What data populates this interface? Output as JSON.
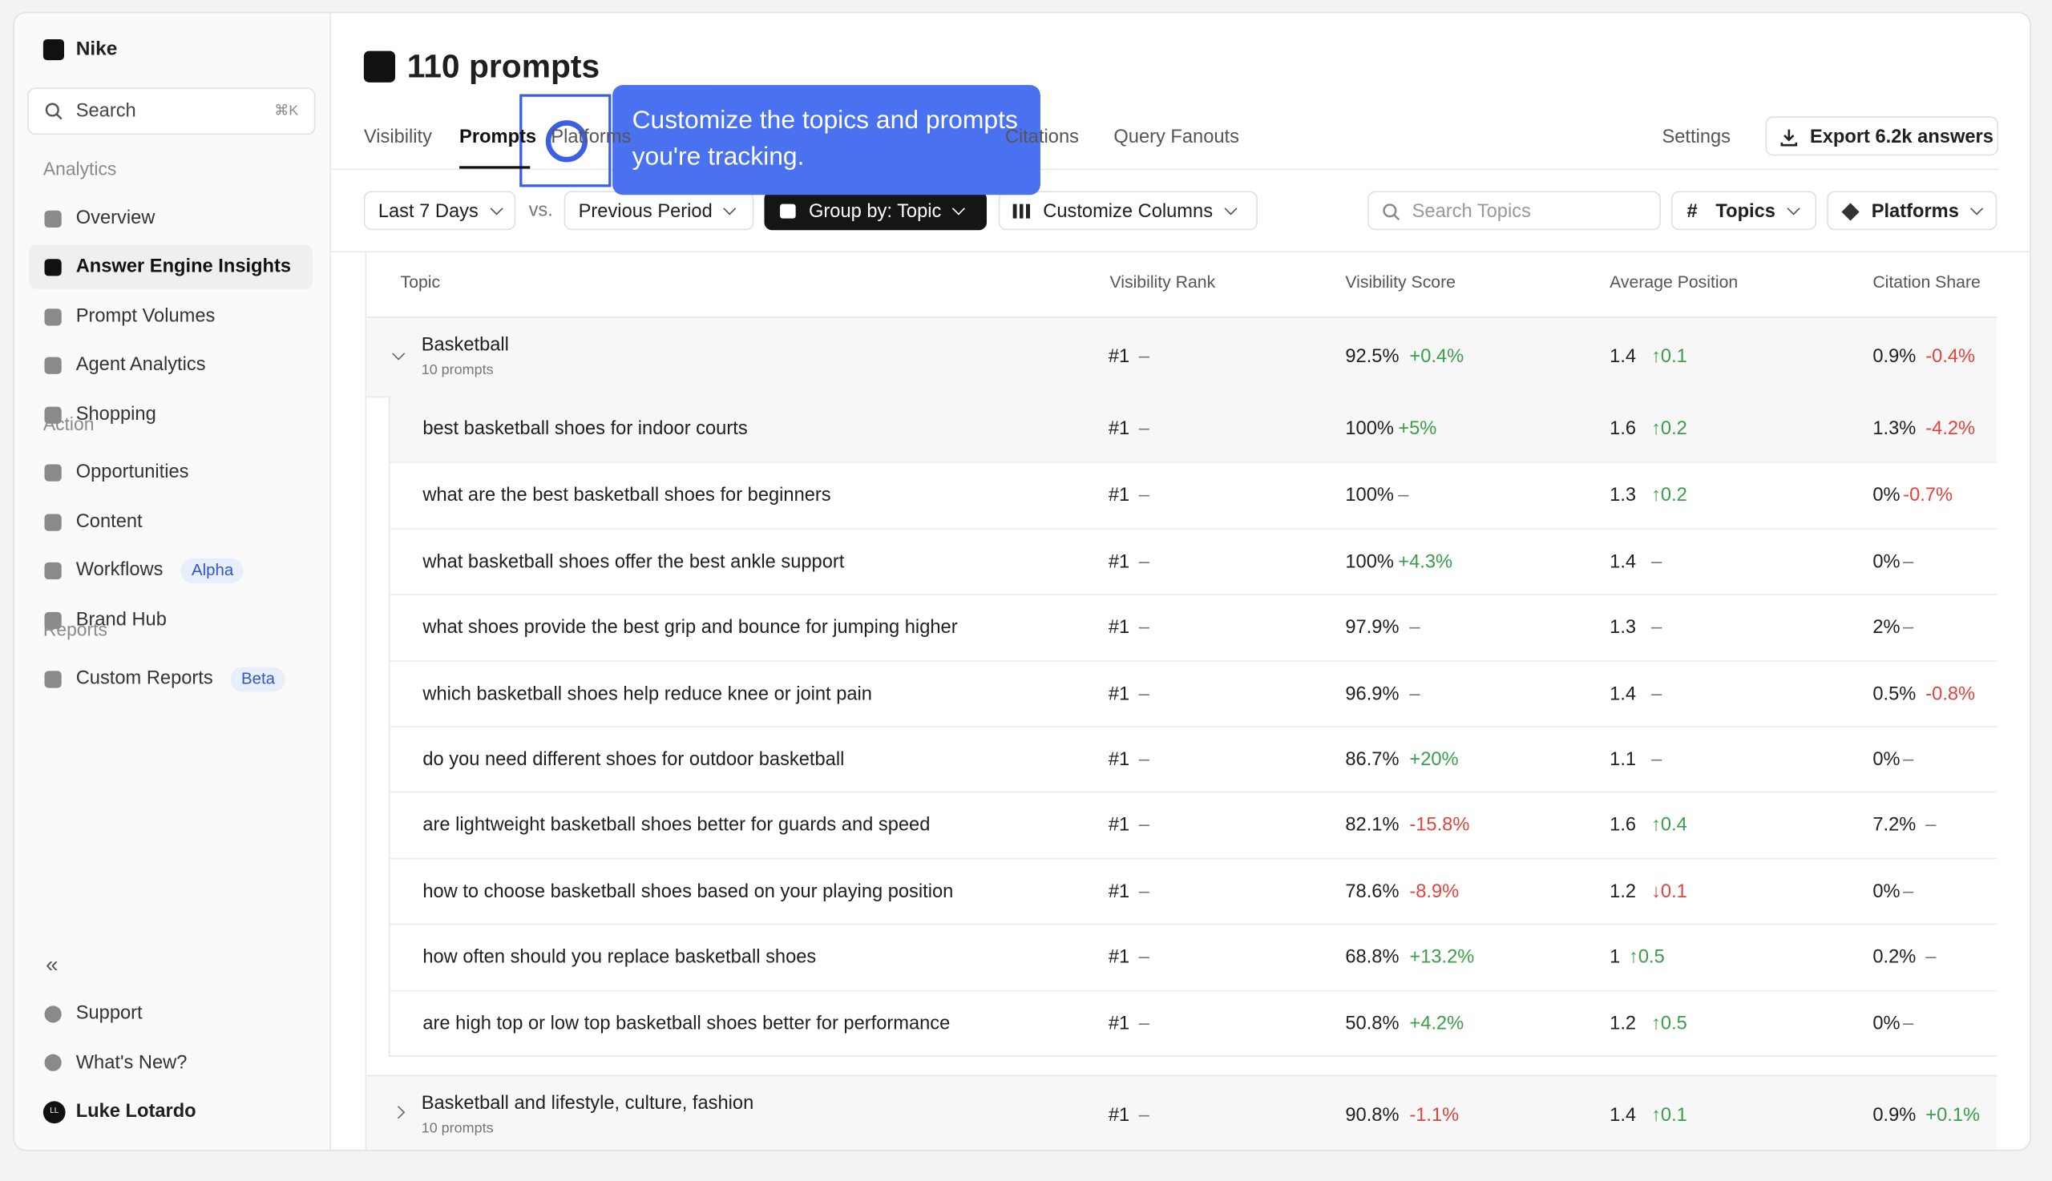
{
  "sidebar": {
    "workspace": "Nike",
    "search": "Search",
    "shortcut": "⌘K",
    "sections": [
      {
        "title": "Analytics",
        "items": [
          {
            "label": "Overview"
          },
          {
            "label": "Answer Engine Insights",
            "active": true
          },
          {
            "label": "Prompt Volumes"
          },
          {
            "label": "Agent Analytics"
          },
          {
            "label": "Shopping"
          }
        ]
      },
      {
        "title": "Action",
        "items": [
          {
            "label": "Opportunities"
          },
          {
            "label": "Content"
          },
          {
            "label": "Workflows",
            "badge": "Alpha"
          },
          {
            "label": "Brand Hub"
          }
        ]
      },
      {
        "title": "Reports",
        "items": [
          {
            "label": "Custom Reports",
            "badge": "Beta"
          }
        ]
      }
    ],
    "footer": [
      "Support",
      "What's New?"
    ],
    "user": {
      "initials": "LL",
      "name": "Luke Lotardo"
    }
  },
  "header": {
    "title": "110 prompts",
    "tabs": [
      "Visibility",
      "Prompts",
      "Platforms",
      "Citations",
      "Query Fanouts"
    ],
    "settings": "Settings",
    "export": "Export 6.2k answers"
  },
  "tooltip": "Customize the topics and prompts you're tracking.",
  "toolbar": {
    "range": "Last 7 Days",
    "vs": "vs.",
    "compare": "Previous Period",
    "group": "Group by: Topic",
    "columns": "Customize Columns",
    "search": "Search Topics",
    "topics": "Topics",
    "platforms": "Platforms"
  },
  "table": {
    "columns": [
      "Topic",
      "Visibility Rank",
      "Visibility Score",
      "Average Position",
      "Citation Share"
    ],
    "groups": [
      {
        "name": "Basketball",
        "count": "10 prompts",
        "expanded": true,
        "cells": [
          "#1",
          "–",
          "92.5%",
          "+0.4%",
          "1.4",
          "↑0.1",
          "0.9%",
          "-0.4%"
        ],
        "rows": [
          {
            "prompt": "best basketball shoes for indoor courts",
            "cells": [
              "#1",
              "–",
              "100%",
              "+5%",
              "1.6",
              "↑0.2",
              "1.3%",
              "-4.2%"
            ]
          },
          {
            "prompt": "what are the best basketball shoes for beginners",
            "cells": [
              "#1",
              "–",
              "100%",
              "–",
              "1.3",
              "↑0.2",
              "0%",
              "-0.7%"
            ]
          },
          {
            "prompt": "what basketball shoes offer the best ankle support",
            "cells": [
              "#1",
              "–",
              "100%",
              "+4.3%",
              "1.4",
              "–",
              "0%",
              "–"
            ]
          },
          {
            "prompt": "what shoes provide the best grip and bounce for jumping higher",
            "cells": [
              "#1",
              "–",
              "97.9%",
              "–",
              "1.3",
              "–",
              "2%",
              "–"
            ]
          },
          {
            "prompt": "which basketball shoes help reduce knee or joint pain",
            "cells": [
              "#1",
              "–",
              "96.9%",
              "–",
              "1.4",
              "–",
              "0.5%",
              "-0.8%"
            ]
          },
          {
            "prompt": "do you need different shoes for outdoor basketball",
            "cells": [
              "#1",
              "–",
              "86.7%",
              "+20%",
              "1.1",
              "–",
              "0%",
              "–"
            ]
          },
          {
            "prompt": "are lightweight basketball shoes better for guards and speed",
            "cells": [
              "#1",
              "–",
              "82.1%",
              "-15.8%",
              "1.6",
              "↑0.4",
              "7.2%",
              "–"
            ]
          },
          {
            "prompt": "how to choose basketball shoes based on your playing position",
            "cells": [
              "#1",
              "–",
              "78.6%",
              "-8.9%",
              "1.2",
              "↓0.1",
              "0%",
              "–"
            ]
          },
          {
            "prompt": "how often should you replace basketball shoes",
            "cells": [
              "#1",
              "–",
              "68.8%",
              "+13.2%",
              "1",
              "↑0.5",
              "0.2%",
              "–"
            ]
          },
          {
            "prompt": "are high top or low top basketball shoes better for performance",
            "cells": [
              "#1",
              "–",
              "50.8%",
              "+4.2%",
              "1.2",
              "↑0.5",
              "0%",
              "–"
            ]
          }
        ]
      },
      {
        "name": "Basketball and lifestyle, culture, fashion",
        "count": "10 prompts",
        "expanded": false,
        "cells": [
          "#1",
          "–",
          "90.8%",
          "-1.1%",
          "1.4",
          "↑0.1",
          "0.9%",
          "+0.1%"
        ],
        "rows": []
      }
    ]
  }
}
